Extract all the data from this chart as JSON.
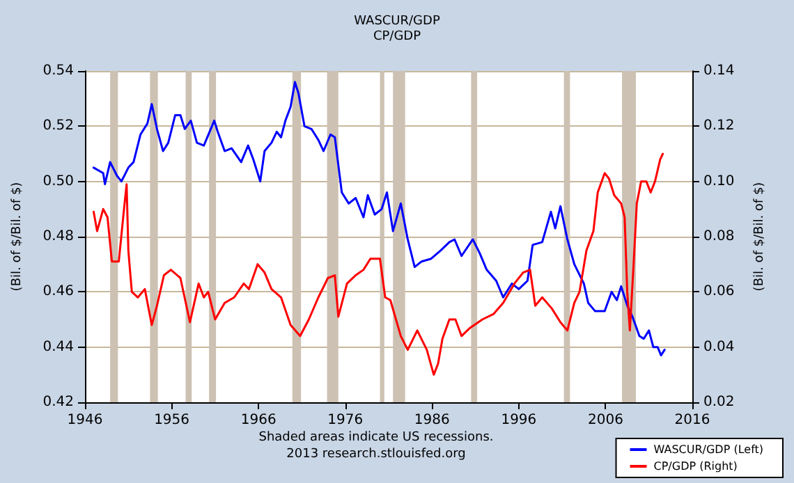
{
  "chart_data": {
    "type": "line",
    "title": "WASCUR/GDP",
    "subtitle": "CP/GDP",
    "ylabel": "(Bil. of $/Bil. of $)",
    "y2label": "(Bil. of $/Bil. of $)",
    "annotations": [
      "Shaded areas indicate US recessions.",
      "2013 research.stlouisfed.org"
    ],
    "series": [
      {
        "name": "WASCUR/GDP (Left)",
        "color": "#0000ff",
        "x": [
          1947.0,
          1948.1,
          1948.3,
          1948.9,
          1949.7,
          1950.2,
          1951.0,
          1951.6,
          1952.4,
          1953.2,
          1953.7,
          1954.3,
          1955.0,
          1955.6,
          1956.4,
          1957.0,
          1957.5,
          1958.2,
          1958.9,
          1959.7,
          1960.5,
          1960.9,
          1961.3,
          1962.1,
          1962.9,
          1964.0,
          1964.8,
          1965.4,
          1966.2,
          1966.7,
          1967.5,
          1968.1,
          1968.6,
          1969.1,
          1969.7,
          1970.2,
          1970.6,
          1971.3,
          1972.1,
          1972.9,
          1973.5,
          1974.3,
          1974.8,
          1975.6,
          1976.4,
          1977.2,
          1978.1,
          1978.6,
          1979.4,
          1980.2,
          1980.8,
          1981.5,
          1982.4,
          1983.2,
          1984.0,
          1984.8,
          1985.9,
          1987.0,
          1988.0,
          1988.6,
          1989.4,
          1990.7,
          1991.5,
          1992.3,
          1993.4,
          1994.2,
          1995.2,
          1996.0,
          1997.0,
          1997.6,
          1998.7,
          1999.7,
          2000.2,
          2000.8,
          2001.6,
          2002.4,
          2003.5,
          2004.0,
          2004.8,
          2005.9,
          2006.7,
          2007.3,
          2007.8,
          2008.5,
          2009.1,
          2009.9,
          2010.4,
          2011.0,
          2011.5,
          2012.0,
          2012.4,
          2012.8
        ],
        "values": [
          0.505,
          0.503,
          0.499,
          0.507,
          0.502,
          0.5,
          0.505,
          0.507,
          0.517,
          0.521,
          0.528,
          0.519,
          0.511,
          0.514,
          0.524,
          0.524,
          0.519,
          0.522,
          0.514,
          0.513,
          0.519,
          0.522,
          0.518,
          0.511,
          0.512,
          0.507,
          0.513,
          0.508,
          0.5,
          0.511,
          0.514,
          0.518,
          0.516,
          0.522,
          0.527,
          0.536,
          0.532,
          0.52,
          0.519,
          0.515,
          0.511,
          0.517,
          0.516,
          0.496,
          0.492,
          0.494,
          0.487,
          0.495,
          0.488,
          0.49,
          0.496,
          0.482,
          0.492,
          0.479,
          0.469,
          0.471,
          0.472,
          0.475,
          0.478,
          0.479,
          0.473,
          0.479,
          0.474,
          0.468,
          0.464,
          0.458,
          0.463,
          0.461,
          0.464,
          0.477,
          0.478,
          0.489,
          0.483,
          0.491,
          0.479,
          0.47,
          0.463,
          0.456,
          0.453,
          0.453,
          0.46,
          0.457,
          0.462,
          0.455,
          0.451,
          0.444,
          0.443,
          0.446,
          0.44,
          0.44,
          0.437,
          0.439
        ]
      },
      {
        "name": "CP/GDP (Right)",
        "color": "#ff0000",
        "axis": "y2",
        "x": [
          1947.0,
          1947.4,
          1948.1,
          1948.6,
          1949.1,
          1949.9,
          1950.5,
          1950.8,
          1951.0,
          1951.4,
          1952.1,
          1952.9,
          1953.7,
          1954.3,
          1955.1,
          1955.9,
          1957.0,
          1958.1,
          1959.1,
          1959.7,
          1960.2,
          1961.0,
          1962.1,
          1963.2,
          1964.3,
          1964.9,
          1965.9,
          1966.7,
          1967.5,
          1968.6,
          1969.7,
          1970.8,
          1971.8,
          1972.9,
          1974.0,
          1974.8,
          1975.2,
          1976.2,
          1977.2,
          1978.1,
          1978.9,
          1980.0,
          1980.6,
          1981.2,
          1982.4,
          1983.2,
          1984.3,
          1985.4,
          1986.2,
          1986.7,
          1987.2,
          1988.0,
          1988.7,
          1989.4,
          1990.4,
          1991.8,
          1993.1,
          1994.2,
          1995.5,
          1996.5,
          1997.3,
          1997.9,
          1998.7,
          1999.8,
          2000.8,
          2001.6,
          2002.4,
          2003.0,
          2003.8,
          2004.6,
          2005.1,
          2005.9,
          2006.4,
          2007.0,
          2007.8,
          2008.2,
          2008.5,
          2008.8,
          2009.2,
          2009.6,
          2010.1,
          2010.7,
          2011.2,
          2011.7,
          2012.3,
          2012.6
        ],
        "values": [
          0.089,
          0.082,
          0.09,
          0.087,
          0.071,
          0.071,
          0.09,
          0.099,
          0.075,
          0.06,
          0.058,
          0.061,
          0.048,
          0.055,
          0.066,
          0.068,
          0.065,
          0.049,
          0.063,
          0.058,
          0.06,
          0.05,
          0.056,
          0.058,
          0.063,
          0.061,
          0.07,
          0.067,
          0.061,
          0.058,
          0.048,
          0.044,
          0.05,
          0.058,
          0.065,
          0.066,
          0.051,
          0.063,
          0.066,
          0.068,
          0.072,
          0.072,
          0.058,
          0.057,
          0.044,
          0.039,
          0.046,
          0.039,
          0.03,
          0.034,
          0.043,
          0.05,
          0.05,
          0.044,
          0.047,
          0.05,
          0.052,
          0.056,
          0.063,
          0.067,
          0.068,
          0.055,
          0.058,
          0.054,
          0.049,
          0.046,
          0.056,
          0.06,
          0.075,
          0.082,
          0.096,
          0.103,
          0.101,
          0.095,
          0.092,
          0.087,
          0.06,
          0.046,
          0.068,
          0.092,
          0.1,
          0.1,
          0.096,
          0.1,
          0.108,
          0.11
        ]
      }
    ],
    "bands": [
      {
        "axis": "x",
        "from": 1948.9,
        "to": 1949.8,
        "color": "#cdc1b3"
      },
      {
        "axis": "x",
        "from": 1953.5,
        "to": 1954.4,
        "color": "#cdc1b3"
      },
      {
        "axis": "x",
        "from": 1957.6,
        "to": 1958.3,
        "color": "#cdc1b3"
      },
      {
        "axis": "x",
        "from": 1960.3,
        "to": 1961.1,
        "color": "#cdc1b3"
      },
      {
        "axis": "x",
        "from": 1969.9,
        "to": 1970.9,
        "color": "#cdc1b3"
      },
      {
        "axis": "x",
        "from": 1973.9,
        "to": 1975.2,
        "color": "#cdc1b3"
      },
      {
        "axis": "x",
        "from": 1980.0,
        "to": 1980.5,
        "color": "#cdc1b3"
      },
      {
        "axis": "x",
        "from": 1981.5,
        "to": 1982.9,
        "color": "#cdc1b3"
      },
      {
        "axis": "x",
        "from": 1990.5,
        "to": 1991.2,
        "color": "#cdc1b3"
      },
      {
        "axis": "x",
        "from": 2001.2,
        "to": 2001.9,
        "color": "#cdc1b3"
      },
      {
        "axis": "x",
        "from": 2007.9,
        "to": 2009.5,
        "color": "#cdc1b3"
      }
    ],
    "xlim": [
      1946,
      2016
    ],
    "xticks": [
      1946,
      1956,
      1966,
      1976,
      1986,
      1996,
      2006,
      2016
    ],
    "ylim": [
      0.42,
      0.54
    ],
    "yticks": [
      {
        "value": 0.42,
        "label": "0.42"
      },
      {
        "value": 0.44,
        "label": "0.44"
      },
      {
        "value": 0.46,
        "label": "0.46"
      },
      {
        "value": 0.48,
        "label": "0.48"
      },
      {
        "value": 0.5,
        "label": "0.50"
      },
      {
        "value": 0.52,
        "label": "0.52"
      },
      {
        "value": 0.54,
        "label": "0.54"
      }
    ],
    "y2lim": [
      0.02,
      0.14
    ],
    "y2ticks": [
      {
        "value": 0.02,
        "label": "0.02"
      },
      {
        "value": 0.04,
        "label": "0.04"
      },
      {
        "value": 0.06,
        "label": "0.06"
      },
      {
        "value": 0.08,
        "label": "0.08"
      },
      {
        "value": 0.1,
        "label": "0.10"
      },
      {
        "value": 0.12,
        "label": "0.12"
      },
      {
        "value": 0.14,
        "label": "0.14"
      }
    ],
    "grid": "y",
    "legend": "bottom right",
    "marker": "none",
    "line_style": "solid"
  }
}
